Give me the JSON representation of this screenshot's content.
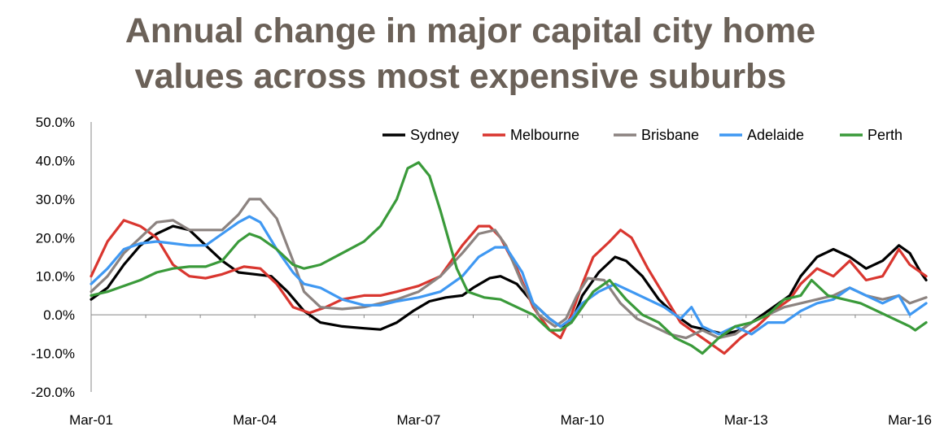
{
  "chart_data": {
    "type": "line",
    "title": "Annual change in major capital city home values across most expensive suburbs",
    "title_lines": [
      "Annual change in major capital city home",
      "values across most expensive suburbs"
    ],
    "x_tick_labels": [
      "Mar-01",
      "Mar-04",
      "Mar-07",
      "Mar-10",
      "Mar-13",
      "Mar-16"
    ],
    "x_tick_years": [
      2001,
      2004,
      2007,
      2010,
      2013,
      2016
    ],
    "y_tick_labels": [
      "50.0%",
      "40.0%",
      "30.0%",
      "20.0%",
      "10.0%",
      "0.0%",
      "-10.0%",
      "-20.0%"
    ],
    "ylim": [
      -20,
      50
    ],
    "xlim": [
      2001,
      2016
    ],
    "legend_position": "top-right",
    "series": [
      {
        "name": "Sydney",
        "color": "#000000",
        "points": [
          [
            2001.0,
            4
          ],
          [
            2001.3,
            7
          ],
          [
            2001.6,
            13
          ],
          [
            2001.9,
            18
          ],
          [
            2002.2,
            21
          ],
          [
            2002.5,
            23
          ],
          [
            2002.8,
            22
          ],
          [
            2003.1,
            18
          ],
          [
            2003.4,
            14
          ],
          [
            2003.7,
            11
          ],
          [
            2004.0,
            10.5
          ],
          [
            2004.3,
            10
          ],
          [
            2004.6,
            6
          ],
          [
            2004.9,
            1
          ],
          [
            2005.2,
            -2
          ],
          [
            2005.6,
            -3
          ],
          [
            2006.0,
            -3.5
          ],
          [
            2006.3,
            -3.8
          ],
          [
            2006.6,
            -2
          ],
          [
            2006.9,
            1
          ],
          [
            2007.2,
            3.5
          ],
          [
            2007.5,
            4.5
          ],
          [
            2007.8,
            5
          ],
          [
            2008.0,
            7
          ],
          [
            2008.3,
            9.5
          ],
          [
            2008.5,
            10
          ],
          [
            2008.8,
            8
          ],
          [
            2009.1,
            3
          ],
          [
            2009.4,
            -1
          ],
          [
            2009.6,
            -3
          ],
          [
            2009.8,
            -2
          ],
          [
            2010.0,
            5
          ],
          [
            2010.3,
            11
          ],
          [
            2010.6,
            15
          ],
          [
            2010.8,
            14
          ],
          [
            2011.1,
            10
          ],
          [
            2011.4,
            4
          ],
          [
            2011.7,
            0
          ],
          [
            2012.0,
            -3
          ],
          [
            2012.3,
            -4
          ],
          [
            2012.6,
            -5
          ],
          [
            2012.9,
            -4
          ],
          [
            2013.2,
            -1
          ],
          [
            2013.5,
            2
          ],
          [
            2013.8,
            5
          ],
          [
            2014.0,
            10
          ],
          [
            2014.3,
            15
          ],
          [
            2014.6,
            17
          ],
          [
            2014.9,
            15
          ],
          [
            2015.2,
            12
          ],
          [
            2015.5,
            14
          ],
          [
            2015.8,
            18
          ],
          [
            2016.0,
            16
          ],
          [
            2016.2,
            11
          ],
          [
            2016.3,
            9
          ]
        ]
      },
      {
        "name": "Melbourne",
        "color": "#d9362f",
        "points": [
          [
            2001.0,
            10
          ],
          [
            2001.3,
            19
          ],
          [
            2001.6,
            24.5
          ],
          [
            2001.9,
            23
          ],
          [
            2002.2,
            20
          ],
          [
            2002.5,
            13
          ],
          [
            2002.8,
            10
          ],
          [
            2003.1,
            9.5
          ],
          [
            2003.4,
            10.5
          ],
          [
            2003.8,
            12.5
          ],
          [
            2004.1,
            12
          ],
          [
            2004.4,
            8
          ],
          [
            2004.7,
            2
          ],
          [
            2005.0,
            0.5
          ],
          [
            2005.3,
            2
          ],
          [
            2005.6,
            4
          ],
          [
            2006.0,
            5
          ],
          [
            2006.3,
            5
          ],
          [
            2006.6,
            6
          ],
          [
            2007.0,
            7.5
          ],
          [
            2007.4,
            10
          ],
          [
            2007.8,
            18
          ],
          [
            2008.1,
            23
          ],
          [
            2008.3,
            23
          ],
          [
            2008.5,
            20
          ],
          [
            2008.8,
            12
          ],
          [
            2009.1,
            2
          ],
          [
            2009.4,
            -4
          ],
          [
            2009.6,
            -6
          ],
          [
            2009.8,
            0
          ],
          [
            2010.0,
            8
          ],
          [
            2010.2,
            15
          ],
          [
            2010.5,
            19
          ],
          [
            2010.7,
            22
          ],
          [
            2010.9,
            20
          ],
          [
            2011.2,
            12
          ],
          [
            2011.5,
            5
          ],
          [
            2011.8,
            -2
          ],
          [
            2012.1,
            -5
          ],
          [
            2012.4,
            -8
          ],
          [
            2012.6,
            -10
          ],
          [
            2012.9,
            -6
          ],
          [
            2013.2,
            -3
          ],
          [
            2013.5,
            1
          ],
          [
            2013.8,
            4
          ],
          [
            2014.0,
            8
          ],
          [
            2014.3,
            12
          ],
          [
            2014.6,
            10
          ],
          [
            2014.9,
            14
          ],
          [
            2015.2,
            9
          ],
          [
            2015.5,
            10
          ],
          [
            2015.8,
            17
          ],
          [
            2016.0,
            13
          ],
          [
            2016.3,
            10
          ]
        ]
      },
      {
        "name": "Brisbane",
        "color": "#8c8380",
        "points": [
          [
            2001.0,
            6
          ],
          [
            2001.3,
            10
          ],
          [
            2001.6,
            16
          ],
          [
            2001.9,
            20
          ],
          [
            2002.2,
            24
          ],
          [
            2002.5,
            24.5
          ],
          [
            2002.8,
            22
          ],
          [
            2003.1,
            22
          ],
          [
            2003.4,
            22
          ],
          [
            2003.7,
            26
          ],
          [
            2003.9,
            30
          ],
          [
            2004.1,
            30
          ],
          [
            2004.4,
            25
          ],
          [
            2004.7,
            14
          ],
          [
            2004.9,
            6
          ],
          [
            2005.2,
            2
          ],
          [
            2005.6,
            1.5
          ],
          [
            2006.0,
            2
          ],
          [
            2006.3,
            3
          ],
          [
            2006.6,
            4
          ],
          [
            2007.0,
            6
          ],
          [
            2007.4,
            10
          ],
          [
            2007.8,
            16
          ],
          [
            2008.1,
            21
          ],
          [
            2008.4,
            22
          ],
          [
            2008.6,
            18
          ],
          [
            2008.9,
            8
          ],
          [
            2009.2,
            0
          ],
          [
            2009.5,
            -3
          ],
          [
            2009.7,
            -1
          ],
          [
            2009.9,
            5
          ],
          [
            2010.1,
            9.5
          ],
          [
            2010.4,
            9
          ],
          [
            2010.7,
            3
          ],
          [
            2011.0,
            -1
          ],
          [
            2011.3,
            -3
          ],
          [
            2011.6,
            -5
          ],
          [
            2011.9,
            -6
          ],
          [
            2012.2,
            -4
          ],
          [
            2012.5,
            -6
          ],
          [
            2012.8,
            -5
          ],
          [
            2013.1,
            -2
          ],
          [
            2013.4,
            0
          ],
          [
            2013.7,
            2
          ],
          [
            2014.0,
            3
          ],
          [
            2014.3,
            4
          ],
          [
            2014.6,
            5
          ],
          [
            2014.9,
            7
          ],
          [
            2015.2,
            5
          ],
          [
            2015.5,
            4
          ],
          [
            2015.8,
            5
          ],
          [
            2016.0,
            3
          ],
          [
            2016.3,
            4.5
          ]
        ]
      },
      {
        "name": "Adelaide",
        "color": "#3f98f2",
        "points": [
          [
            2001.0,
            8
          ],
          [
            2001.3,
            12
          ],
          [
            2001.6,
            17
          ],
          [
            2001.9,
            18.5
          ],
          [
            2002.2,
            19
          ],
          [
            2002.5,
            18.5
          ],
          [
            2002.8,
            18
          ],
          [
            2003.1,
            18
          ],
          [
            2003.4,
            21
          ],
          [
            2003.7,
            24
          ],
          [
            2003.9,
            25.5
          ],
          [
            2004.1,
            24
          ],
          [
            2004.4,
            17
          ],
          [
            2004.7,
            11
          ],
          [
            2004.9,
            8
          ],
          [
            2005.2,
            7
          ],
          [
            2005.6,
            4
          ],
          [
            2006.0,
            2.5
          ],
          [
            2006.3,
            2.5
          ],
          [
            2006.6,
            3.5
          ],
          [
            2007.0,
            4.5
          ],
          [
            2007.4,
            6
          ],
          [
            2007.8,
            10
          ],
          [
            2008.1,
            15
          ],
          [
            2008.4,
            17.5
          ],
          [
            2008.6,
            17.5
          ],
          [
            2008.9,
            11
          ],
          [
            2009.1,
            3
          ],
          [
            2009.4,
            -1
          ],
          [
            2009.6,
            -3
          ],
          [
            2009.8,
            -1
          ],
          [
            2010.0,
            3
          ],
          [
            2010.3,
            6
          ],
          [
            2010.6,
            8
          ],
          [
            2010.9,
            6
          ],
          [
            2011.2,
            4
          ],
          [
            2011.5,
            2
          ],
          [
            2011.8,
            -1
          ],
          [
            2012.0,
            2
          ],
          [
            2012.2,
            -3
          ],
          [
            2012.5,
            -5
          ],
          [
            2012.8,
            -3
          ],
          [
            2013.1,
            -5
          ],
          [
            2013.4,
            -2
          ],
          [
            2013.7,
            -2
          ],
          [
            2014.0,
            1
          ],
          [
            2014.3,
            3
          ],
          [
            2014.6,
            4
          ],
          [
            2014.9,
            7
          ],
          [
            2015.2,
            5
          ],
          [
            2015.5,
            3
          ],
          [
            2015.8,
            5
          ],
          [
            2016.0,
            0
          ],
          [
            2016.3,
            3
          ]
        ]
      },
      {
        "name": "Perth",
        "color": "#3a9a3a",
        "points": [
          [
            2001.0,
            5
          ],
          [
            2001.3,
            6
          ],
          [
            2001.6,
            7.5
          ],
          [
            2001.9,
            9
          ],
          [
            2002.2,
            11
          ],
          [
            2002.5,
            12
          ],
          [
            2002.8,
            12.5
          ],
          [
            2003.1,
            12.5
          ],
          [
            2003.4,
            14
          ],
          [
            2003.7,
            19
          ],
          [
            2003.9,
            21
          ],
          [
            2004.1,
            20
          ],
          [
            2004.4,
            17
          ],
          [
            2004.7,
            13
          ],
          [
            2004.9,
            12
          ],
          [
            2005.2,
            13
          ],
          [
            2005.6,
            16
          ],
          [
            2006.0,
            19
          ],
          [
            2006.3,
            23
          ],
          [
            2006.6,
            30
          ],
          [
            2006.8,
            38
          ],
          [
            2007.0,
            39.5
          ],
          [
            2007.2,
            36
          ],
          [
            2007.4,
            27
          ],
          [
            2007.7,
            12
          ],
          [
            2007.9,
            6
          ],
          [
            2008.2,
            4.5
          ],
          [
            2008.5,
            4
          ],
          [
            2008.8,
            2
          ],
          [
            2009.1,
            0
          ],
          [
            2009.4,
            -4
          ],
          [
            2009.6,
            -4
          ],
          [
            2009.8,
            -2
          ],
          [
            2010.0,
            2
          ],
          [
            2010.2,
            6
          ],
          [
            2010.5,
            9
          ],
          [
            2010.8,
            4
          ],
          [
            2011.1,
            0
          ],
          [
            2011.4,
            -2
          ],
          [
            2011.7,
            -6
          ],
          [
            2012.0,
            -8
          ],
          [
            2012.2,
            -10
          ],
          [
            2012.5,
            -6
          ],
          [
            2012.8,
            -3
          ],
          [
            2013.1,
            -2
          ],
          [
            2013.4,
            0
          ],
          [
            2013.7,
            4
          ],
          [
            2014.0,
            5
          ],
          [
            2014.2,
            9
          ],
          [
            2014.5,
            5
          ],
          [
            2014.8,
            4
          ],
          [
            2015.1,
            3
          ],
          [
            2015.4,
            1
          ],
          [
            2015.7,
            -1
          ],
          [
            2016.0,
            -3
          ],
          [
            2016.1,
            -4
          ],
          [
            2016.3,
            -2
          ]
        ]
      }
    ]
  }
}
